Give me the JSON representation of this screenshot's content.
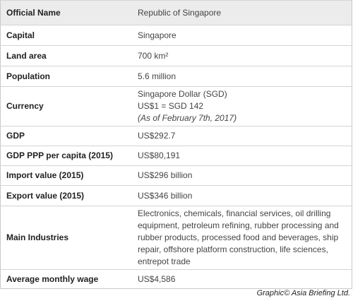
{
  "table": {
    "rows": [
      {
        "label": "Official Name",
        "lines": [
          "Republic of Singapore"
        ]
      },
      {
        "label": "Capital",
        "lines": [
          "Singapore"
        ]
      },
      {
        "label": "Land area",
        "lines": [
          "700 km²"
        ]
      },
      {
        "label": "Population",
        "lines": [
          "5.6 million"
        ]
      },
      {
        "label": "Currency",
        "lines": [
          "Singapore Dollar (SGD)",
          "US$1 = SGD 142",
          "(As of February 7th, 2017)"
        ]
      },
      {
        "label": "GDP",
        "lines": [
          "US$292.7"
        ]
      },
      {
        "label": "GDP PPP per capita (2015)",
        "lines": [
          "US$80,191"
        ]
      },
      {
        "label": "Import value (2015)",
        "lines": [
          "US$296 billion"
        ]
      },
      {
        "label": "Export value (2015)",
        "lines": [
          "US$346 billion"
        ]
      },
      {
        "label": "Main Industries",
        "lines": [
          "Electronics, chemicals, financial services, oil drilling equipment, petroleum refining, rubber processing and rubber products, processed food and beverages, ship repair, offshore platform construction, life sciences, entrepot trade"
        ]
      },
      {
        "label": "Average monthly wage",
        "lines": [
          "US$4,586"
        ]
      }
    ]
  },
  "credit": "Graphic© Asia Briefing Ltd."
}
